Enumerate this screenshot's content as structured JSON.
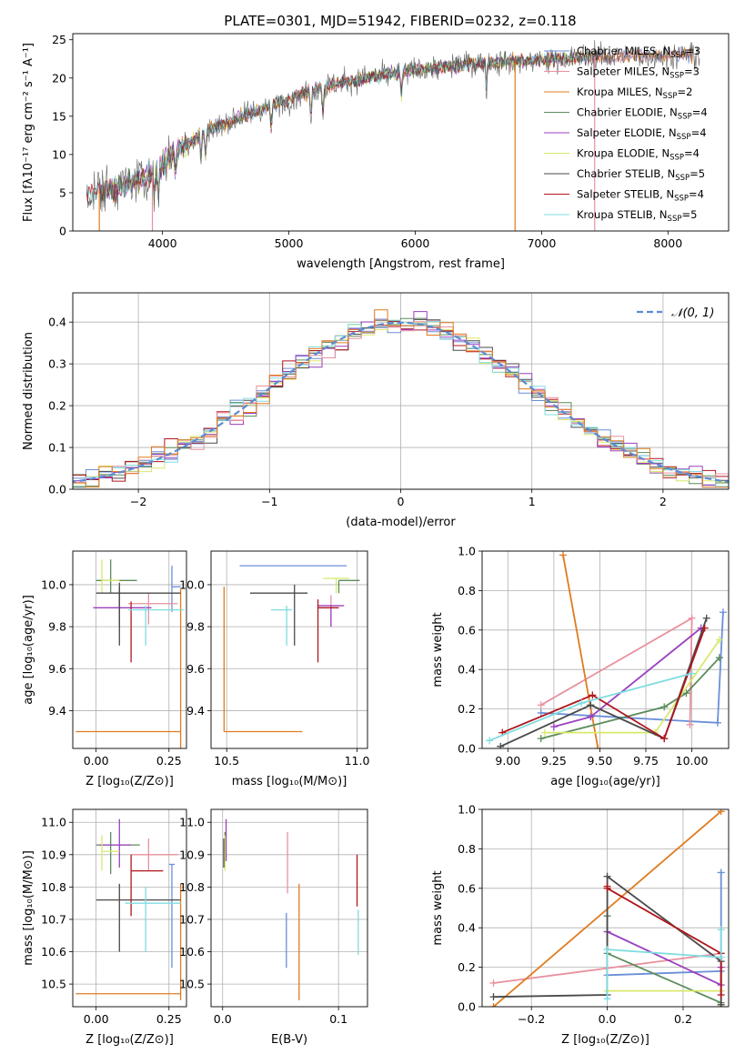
{
  "figure": {
    "title": "PLATE=0301, MJD=51942, FIBERID=0232, z=0.118"
  },
  "colors": {
    "grid": "#b0b0b0",
    "normal_curve": "#5b8bd5"
  },
  "models": [
    {
      "label": "Chabrier MILES, N$_{SSP}$=3",
      "color": "#6a8fd8"
    },
    {
      "label": "Salpeter MILES, N$_{SSP}$=3",
      "color": "#e8919e"
    },
    {
      "label": "Kroupa MILES, N$_{SSP}$=2",
      "color": "#e07b1f"
    },
    {
      "label": "Chabrier ELODIE, N$_{SSP}$=4",
      "color": "#5c8c5c"
    },
    {
      "label": "Salpeter ELODIE, N$_{SSP}$=4",
      "color": "#9b3fbf"
    },
    {
      "label": "Kroupa ELODIE, N$_{SSP}$=4",
      "color": "#d8e86b"
    },
    {
      "label": "Chabrier STELIB, N$_{SSP}$=5",
      "color": "#4a4a4a"
    },
    {
      "label": "Salpeter STELIB, N$_{SSP}$=4",
      "color": "#b0161c"
    },
    {
      "label": "Kroupa STELIB, N$_{SSP}$=5",
      "color": "#7fdce0"
    }
  ],
  "legend_labels": [
    [
      "Chabrier MILES, N",
      "SSP",
      "=3"
    ],
    [
      "Salpeter MILES, N",
      "SSP",
      "=3"
    ],
    [
      "Kroupa MILES, N",
      "SSP",
      "=2"
    ],
    [
      "Chabrier ELODIE, N",
      "SSP",
      "=4"
    ],
    [
      "Salpeter ELODIE, N",
      "SSP",
      "=4"
    ],
    [
      "Kroupa ELODIE, N",
      "SSP",
      "=4"
    ],
    [
      "Chabrier STELIB, N",
      "SSP",
      "=5"
    ],
    [
      "Salpeter STELIB, N",
      "SSP",
      "=4"
    ],
    [
      "Kroupa STELIB, N",
      "SSP",
      "=5"
    ]
  ],
  "chart_data": [
    {
      "id": "spectrum",
      "type": "line",
      "xlabel": "wavelength [Angstrom, rest frame]",
      "ylabel": "Flux [fλ10⁻¹⁷ erg cm⁻² s⁻¹ A⁻¹]",
      "xlim": [
        3290,
        8480
      ],
      "ylim": [
        0,
        25.8
      ],
      "xticks": [
        4000,
        5000,
        6000,
        7000,
        8000
      ],
      "yticks": [
        0,
        5,
        10,
        15,
        20,
        25
      ],
      "grid": false,
      "legend_placement": "right",
      "continuum_anchors": [
        [
          3400,
          5.0
        ],
        [
          3700,
          6.0
        ],
        [
          3950,
          7.5
        ],
        [
          4100,
          10.5
        ],
        [
          4400,
          13.5
        ],
        [
          4800,
          16.0
        ],
        [
          5200,
          18.5
        ],
        [
          5600,
          20.0
        ],
        [
          6000,
          21.0
        ],
        [
          6500,
          22.0
        ],
        [
          7000,
          22.3
        ],
        [
          7400,
          22.8
        ],
        [
          8000,
          23.0
        ],
        [
          8250,
          23.0
        ]
      ],
      "vertical_drops": [
        3500,
        3920,
        6790,
        7420
      ]
    },
    {
      "id": "residuals",
      "type": "histogram",
      "xlabel": "(data-model)/error",
      "ylabel": "Normed distribution",
      "xlim": [
        -2.5,
        2.5
      ],
      "ylim": [
        0,
        0.47
      ],
      "xticks": [
        -2,
        -1,
        0,
        1,
        2
      ],
      "yticks": [
        0.0,
        0.1,
        0.2,
        0.3,
        0.4
      ],
      "grid": true,
      "legend_placement": "top-right",
      "normal_label": "𝒩(0, 1)",
      "bin_width": 0.1
    },
    {
      "id": "age_vs_Z",
      "type": "errorbar",
      "xlabel": "Z [log₁₀(Z/Z⊙)]",
      "ylabel": "age  [log₁₀(age/yr)]",
      "xlim": [
        -0.08,
        0.31
      ],
      "ylim": [
        9.22,
        10.16
      ],
      "xticks": [
        0.0,
        0.25
      ],
      "yticks": [
        9.4,
        9.6,
        9.8,
        10.0
      ],
      "grid": true,
      "points": [
        {
          "m": 0,
          "x": 0.26,
          "xe": [
            0.0,
            0.03
          ],
          "y": 9.99,
          "ye": [
            0.12,
            0.1
          ]
        },
        {
          "m": 1,
          "x": 0.18,
          "xe": [
            0.07,
            0.1
          ],
          "y": 9.91,
          "ye": [
            0.1,
            0.05
          ]
        },
        {
          "m": 2,
          "x": 0.29,
          "xe": [
            0.36,
            0.0
          ],
          "y": 9.3,
          "ye": [
            0.16,
            0.68
          ]
        },
        {
          "m": 3,
          "x": 0.05,
          "xe": [
            0.05,
            0.09
          ],
          "y": 10.02,
          "ye": [
            0.06,
            0.1
          ]
        },
        {
          "m": 4,
          "x": 0.08,
          "xe": [
            0.09,
            0.11
          ],
          "y": 9.89,
          "ye": [
            0.09,
            0.1
          ]
        },
        {
          "m": 5,
          "x": 0.02,
          "xe": [
            0.0,
            0.06
          ],
          "y": 10.02,
          "ye": [
            0.06,
            0.1
          ]
        },
        {
          "m": 6,
          "x": 0.08,
          "xe": [
            0.08,
            0.21
          ],
          "y": 9.96,
          "ye": [
            0.25,
            0.05
          ]
        },
        {
          "m": 7,
          "x": 0.12,
          "xe": [
            0.0,
            0.0
          ],
          "y": 9.87,
          "ye": [
            0.24,
            0.05
          ]
        },
        {
          "m": 8,
          "x": 0.17,
          "xe": [
            0.06,
            0.13
          ],
          "y": 9.88,
          "ye": [
            0.17,
            0.02
          ]
        }
      ]
    },
    {
      "id": "age_vs_mass",
      "type": "errorbar",
      "xlabel": "mass [log₁₀(M/M⊙)]",
      "ylabel": "",
      "xlim": [
        10.44,
        11.04
      ],
      "ylim": [
        9.22,
        10.16
      ],
      "xticks": [
        10.5,
        11.0
      ],
      "yticks": [
        9.4,
        9.6,
        9.8,
        10.0
      ],
      "grid": true,
      "points": [
        {
          "m": 0,
          "x": 10.86,
          "xe": [
            0.31,
            0.1
          ],
          "y": 10.09,
          "ye": [
            0.0,
            0.0
          ]
        },
        {
          "m": 1,
          "x": 10.9,
          "xe": [
            0.05,
            0.05
          ],
          "y": 9.9,
          "ye": [
            0.1,
            0.05
          ]
        },
        {
          "m": 2,
          "x": 10.49,
          "xe": [
            0.0,
            0.3
          ],
          "y": 9.3,
          "ye": [
            0.0,
            0.69
          ]
        },
        {
          "m": 3,
          "x": 10.93,
          "xe": [
            0.0,
            0.08
          ],
          "y": 10.02,
          "ye": [
            0.06,
            0.0
          ]
        },
        {
          "m": 4,
          "x": 10.9,
          "xe": [
            0.05,
            0.05
          ],
          "y": 9.9,
          "ye": [
            0.1,
            0.0
          ]
        },
        {
          "m": 5,
          "x": 10.92,
          "xe": [
            0.05,
            0.05
          ],
          "y": 10.03,
          "ye": [
            0.07,
            0.0
          ]
        },
        {
          "m": 6,
          "x": 10.76,
          "xe": [
            0.17,
            0.05
          ],
          "y": 9.96,
          "ye": [
            0.25,
            0.04
          ]
        },
        {
          "m": 7,
          "x": 10.85,
          "xe": [
            0.0,
            0.08
          ],
          "y": 9.89,
          "ye": [
            0.26,
            0.04
          ]
        },
        {
          "m": 8,
          "x": 10.73,
          "xe": [
            0.06,
            0.02
          ],
          "y": 9.88,
          "ye": [
            0.17,
            0.02
          ]
        }
      ]
    },
    {
      "id": "mass_weight_vs_age",
      "type": "line",
      "xlabel": "age  [log₁₀(age/yr)]",
      "ylabel": "mass weight",
      "xlim": [
        8.86,
        10.2
      ],
      "ylim": [
        0,
        1.0
      ],
      "xticks": [
        9.0,
        9.25,
        9.5,
        9.75,
        10.0
      ],
      "yticks": [
        0.0,
        0.2,
        0.4,
        0.6,
        0.8,
        1.0
      ],
      "grid": true,
      "series": [
        {
          "m": 0,
          "x": [
            10.17,
            10.14,
            9.18
          ],
          "y": [
            0.69,
            0.13,
            0.18
          ]
        },
        {
          "m": 1,
          "x": [
            9.18,
            10.0,
            9.99
          ],
          "y": [
            0.22,
            0.66,
            0.12
          ]
        },
        {
          "m": 2,
          "x": [
            9.3,
            9.49
          ],
          "y": [
            0.98,
            0.0
          ]
        },
        {
          "m": 3,
          "x": [
            9.18,
            9.85,
            9.97,
            10.15
          ],
          "y": [
            0.05,
            0.21,
            0.28,
            0.46
          ]
        },
        {
          "m": 4,
          "x": [
            9.25,
            9.45,
            10.05
          ],
          "y": [
            0.11,
            0.16,
            0.61
          ]
        },
        {
          "m": 5,
          "x": [
            9.2,
            9.8,
            10.15
          ],
          "y": [
            0.08,
            0.08,
            0.55
          ]
        },
        {
          "m": 6,
          "x": [
            8.96,
            9.45,
            9.85,
            10.08
          ],
          "y": [
            0.01,
            0.22,
            0.05,
            0.66
          ]
        },
        {
          "m": 7,
          "x": [
            8.97,
            9.46,
            9.85,
            10.07
          ],
          "y": [
            0.08,
            0.27,
            0.05,
            0.61
          ]
        },
        {
          "m": 8,
          "x": [
            8.9,
            9.4,
            10.0
          ],
          "y": [
            0.04,
            0.23,
            0.38
          ]
        }
      ]
    },
    {
      "id": "mass_vs_Z",
      "type": "errorbar",
      "xlabel": "Z [log₁₀(Z/Z⊙)]",
      "ylabel": "mass [log₁₀(M/M⊙)]",
      "xlim": [
        -0.08,
        0.31
      ],
      "ylim": [
        10.43,
        11.04
      ],
      "xticks": [
        0.0,
        0.25
      ],
      "yticks": [
        10.5,
        10.6,
        10.7,
        10.8,
        10.9,
        11.0
      ],
      "grid": true,
      "points": [
        {
          "m": 0,
          "x": 0.26,
          "xe": [
            0.01,
            0.01
          ],
          "y": 10.87,
          "ye": [
            0.32,
            0.0
          ]
        },
        {
          "m": 1,
          "x": 0.18,
          "xe": [
            0.06,
            0.1
          ],
          "y": 10.9,
          "ye": [
            0.05,
            0.05
          ]
        },
        {
          "m": 2,
          "x": 0.29,
          "xe": [
            0.36,
            0.0
          ],
          "y": 10.47,
          "ye": [
            0.02,
            0.34
          ]
        },
        {
          "m": 3,
          "x": 0.05,
          "xe": [
            0.05,
            0.1
          ],
          "y": 10.93,
          "ye": [
            0.09,
            0.04
          ]
        },
        {
          "m": 4,
          "x": 0.08,
          "xe": [
            0.07,
            0.04
          ],
          "y": 10.93,
          "ye": [
            0.07,
            0.08
          ]
        },
        {
          "m": 5,
          "x": 0.02,
          "xe": [
            0.0,
            0.06
          ],
          "y": 10.91,
          "ye": [
            0.06,
            0.05
          ]
        },
        {
          "m": 6,
          "x": 0.08,
          "xe": [
            0.08,
            0.21
          ],
          "y": 10.76,
          "ye": [
            0.16,
            0.05
          ]
        },
        {
          "m": 7,
          "x": 0.12,
          "xe": [
            0.0,
            0.11
          ],
          "y": 10.85,
          "ye": [
            0.14,
            0.05
          ]
        },
        {
          "m": 8,
          "x": 0.17,
          "xe": [
            0.07,
            0.12
          ],
          "y": 10.75,
          "ye": [
            0.15,
            0.05
          ]
        }
      ]
    },
    {
      "id": "mass_vs_ebv",
      "type": "errorbar",
      "xlabel": "E(B-V)",
      "ylabel": "",
      "xlim": [
        -0.01,
        0.125
      ],
      "ylim": [
        10.43,
        11.04
      ],
      "xticks": [
        0.0,
        0.1
      ],
      "yticks": [
        10.5,
        10.6,
        10.7,
        10.8,
        10.9,
        11.0
      ],
      "grid": true,
      "points": [
        {
          "m": 0,
          "x": 0.055,
          "xe": [
            0.0,
            0.0
          ],
          "y": 10.72,
          "ye": [
            0.17,
            0.0
          ]
        },
        {
          "m": 1,
          "x": 0.056,
          "xe": [
            0.0,
            0.0
          ],
          "y": 10.88,
          "ye": [
            0.1,
            0.09
          ]
        },
        {
          "m": 2,
          "x": 0.066,
          "xe": [
            0.0,
            0.0
          ],
          "y": 10.63,
          "ye": [
            0.18,
            0.18
          ]
        },
        {
          "m": 3,
          "x": 0.002,
          "xe": [
            0.0,
            0.0
          ],
          "y": 10.93,
          "ye": [
            0.05,
            0.04
          ]
        },
        {
          "m": 4,
          "x": 0.003,
          "xe": [
            0.0,
            0.0
          ],
          "y": 10.93,
          "ye": [
            0.05,
            0.08
          ]
        },
        {
          "m": 5,
          "x": 0.002,
          "xe": [
            0.0,
            0.0
          ],
          "y": 10.91,
          "ye": [
            0.06,
            0.05
          ]
        },
        {
          "m": 6,
          "x": 0.001,
          "xe": [
            0.0,
            0.0
          ],
          "y": 10.9,
          "ye": [
            0.04,
            0.05
          ]
        },
        {
          "m": 7,
          "x": 0.116,
          "xe": [
            0.0,
            0.0
          ],
          "y": 10.82,
          "ye": [
            0.08,
            0.08
          ]
        },
        {
          "m": 8,
          "x": 0.117,
          "xe": [
            0.0,
            0.0
          ],
          "y": 10.66,
          "ye": [
            0.07,
            0.07
          ]
        }
      ]
    },
    {
      "id": "mass_weight_vs_Z",
      "type": "line",
      "xlabel": "Z [log₁₀(Z/Z⊙)]",
      "ylabel": "mass weight",
      "xlim": [
        -0.33,
        0.32
      ],
      "ylim": [
        0,
        1.0
      ],
      "xticks": [
        -0.2,
        0.0,
        0.2
      ],
      "yticks": [
        0.0,
        0.2,
        0.4,
        0.6,
        0.8,
        1.0
      ],
      "grid": true,
      "series": [
        {
          "m": 0,
          "x": [
            0.3,
            0.3,
            0.0
          ],
          "y": [
            0.68,
            0.18,
            0.16
          ]
        },
        {
          "m": 1,
          "x": [
            -0.3,
            0.3,
            0.3
          ],
          "y": [
            0.12,
            0.27,
            0.0
          ]
        },
        {
          "m": 2,
          "x": [
            -0.3,
            0.3
          ],
          "y": [
            0.0,
            0.99
          ]
        },
        {
          "m": 3,
          "x": [
            0.0,
            0.0,
            0.3
          ],
          "y": [
            0.46,
            0.27,
            0.02
          ]
        },
        {
          "m": 4,
          "x": [
            0.0,
            0.3,
            0.3
          ],
          "y": [
            0.38,
            0.11,
            0.2
          ]
        },
        {
          "m": 5,
          "x": [
            0.0,
            0.3,
            0.3
          ],
          "y": [
            0.08,
            0.08,
            0.08
          ]
        },
        {
          "m": 6,
          "x": [
            -0.3,
            0.0,
            0.0,
            0.3,
            0.3
          ],
          "y": [
            0.05,
            0.06,
            0.66,
            0.23,
            0.01
          ]
        },
        {
          "m": 7,
          "x": [
            0.0,
            0.0,
            0.3,
            0.3
          ],
          "y": [
            0.61,
            0.6,
            0.27,
            0.06
          ]
        },
        {
          "m": 8,
          "x": [
            0.0,
            0.0,
            0.3,
            0.3
          ],
          "y": [
            0.04,
            0.29,
            0.25,
            0.39
          ]
        }
      ]
    }
  ]
}
